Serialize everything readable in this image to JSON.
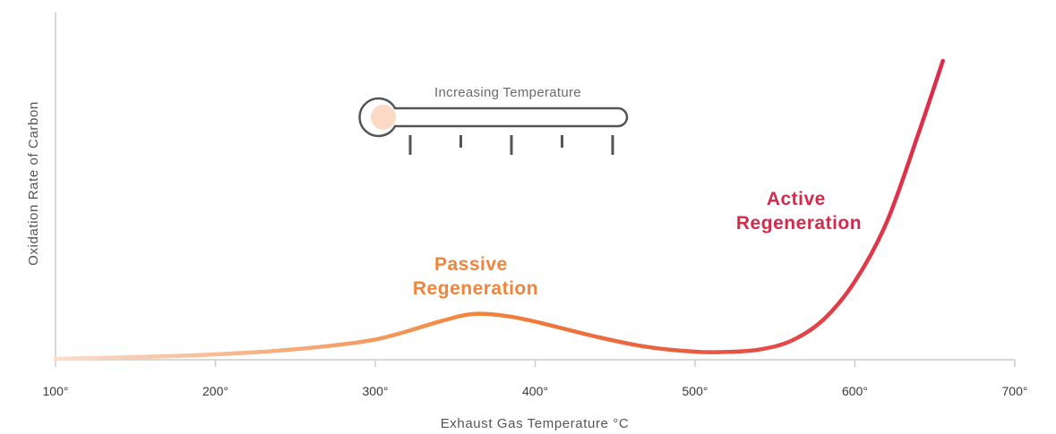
{
  "chart_data": {
    "type": "line",
    "xlabel": "Exhaust Gas Temperature °C",
    "ylabel": "Oxidation Rate of Carbon",
    "xlim": [
      100,
      700
    ],
    "x_ticks": [
      100,
      200,
      300,
      400,
      500,
      600,
      700
    ],
    "x_tick_labels": [
      "100°",
      "200°",
      "300°",
      "400°",
      "500°",
      "600°",
      "700°"
    ],
    "grid": false,
    "series": [
      {
        "x": [
          100,
          150,
          200,
          250,
          300,
          340,
          360,
          380,
          400,
          440,
          470,
          500,
          520,
          540,
          560,
          580,
          600,
          620,
          640,
          655
        ],
        "y": [
          0,
          0.6,
          1.5,
          3.2,
          6.5,
          12.5,
          15.0,
          14.5,
          12.5,
          7.2,
          4.0,
          2.4,
          2.3,
          3.1,
          6.0,
          13.0,
          26.0,
          46.0,
          76.0,
          100
        ],
        "gradient": [
          "#fbdccb",
          "#f1843a",
          "#dc2a4c"
        ]
      }
    ],
    "annotations": [
      {
        "lines": [
          "Passive",
          "Regeneration"
        ],
        "color": "#f1843a"
      },
      {
        "lines": [
          "Active",
          "Regeneration"
        ],
        "color": "#d42a4c"
      }
    ],
    "thermometer": {
      "label": "Increasing Temperature",
      "fill_level": 0.76,
      "tick_count": 5,
      "gradient": [
        "#fcd9c4",
        "#f1843a",
        "#dc2a4c"
      ],
      "outline_color": "#555555"
    },
    "axis_color": "#cccccc"
  }
}
